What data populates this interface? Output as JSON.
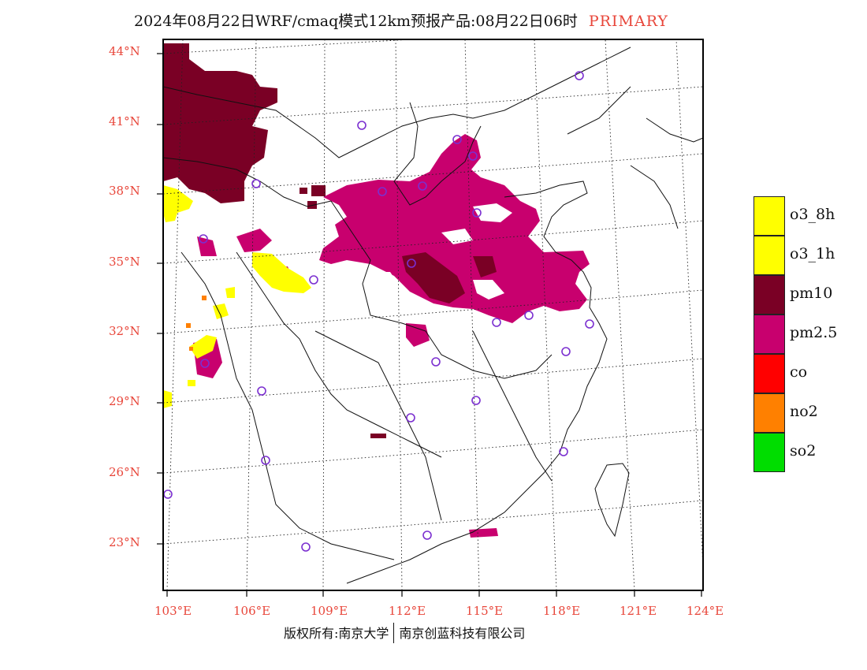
{
  "title": {
    "main": "2024年08月22日WRF/cmaq模式12km预报产品:08月22日06时",
    "tag": "PRIMARY"
  },
  "y_labels": [
    "44°N",
    "41°N",
    "38°N",
    "35°N",
    "32°N",
    "29°N",
    "26°N",
    "23°N"
  ],
  "x_labels": [
    "103°E",
    "106°E",
    "109°E",
    "112°E",
    "115°E",
    "118°E",
    "121°E",
    "124°E"
  ],
  "legend": [
    {
      "label": "o3_8h",
      "color": "#ffff00"
    },
    {
      "label": "o3_1h",
      "color": "#ffff00"
    },
    {
      "label": "pm10",
      "color": "#7a0025"
    },
    {
      "label": "pm2.5",
      "color": "#c8006e"
    },
    {
      "label": "co",
      "color": "#ff0000"
    },
    {
      "label": "no2",
      "color": "#ff8000"
    },
    {
      "label": "so2",
      "color": "#00dd00"
    }
  ],
  "footer": {
    "left": "版权所有:南京大学",
    "right": "南京创蓝科技有限公司"
  },
  "colors": {
    "pm10": "#7a0025",
    "pm25": "#c8006e",
    "o3": "#ffff00",
    "no2": "#ff8000",
    "station": "#7b2fd0",
    "axis_label": "#e8463a"
  }
}
